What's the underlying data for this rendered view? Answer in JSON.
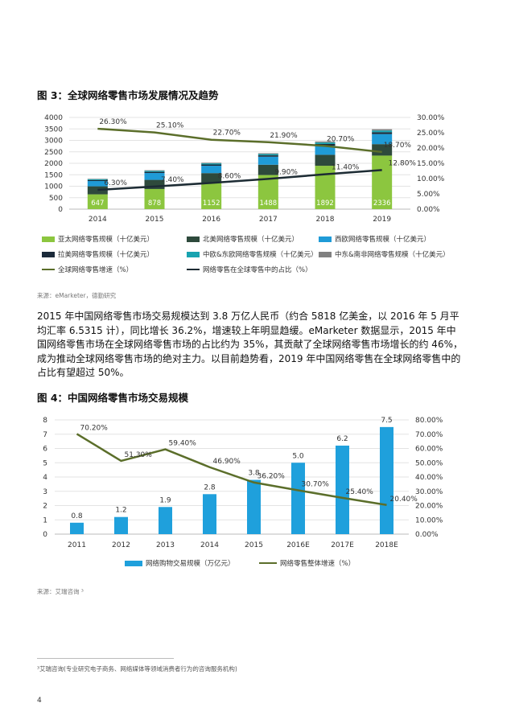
{
  "fig3": {
    "title": "图 3：全球网络零售市场发展情况及趋势",
    "source": "来源：eMarketer，德勤研究"
  },
  "paragraph": [
    "2015 年中国网络零售市场交易规模达到 3.8 万亿人民币（约合 5818 亿美金，以 2016 年 5 月平",
    "均汇率 6.5315 计），同比增长 36.2%，增速较上年明显趋缓。eMarketer 数据显示，2015 年中",
    "国网络零售市场在全球网络零售市场的占比约为 35%，其贡献了全球网络零售市场增长的约 46%，",
    "成为推动全球网络零售市场的绝对主力。以目前趋势看，2019 年中国网络零售在全球网络零售中的",
    "占比有望超过 50%。"
  ],
  "fig4": {
    "title": "图 4：中国网络零售市场交易规模",
    "source": "来源：艾瑞咨询 ³"
  },
  "footnote": "³艾瑞咨询(专业研究电子商务、网络媒体等领域消费者行为的咨询服务机构)",
  "page_number": "4",
  "colors": {
    "apac": "#8cc63f",
    "na": "#2e4a3c",
    "we": "#1f9bd7",
    "la": "#1b2a3a",
    "ceu": "#18a3b0",
    "mea": "#808080",
    "growth": "#5b6e2a",
    "share": "#1c2b33",
    "bar4": "#1fa0dc"
  },
  "chart_data": [
    {
      "type": "bar",
      "stacked": true,
      "categories": [
        "2014",
        "2015",
        "2016",
        "2017",
        "2018",
        "2019"
      ],
      "series": [
        {
          "name": "亚太网络零售规模（十亿美元）",
          "values": [
            647,
            878,
            1152,
            1488,
            1892,
            2336
          ],
          "labels": [
            "647",
            "878",
            "1152",
            "1488",
            "1892",
            "2336"
          ]
        },
        {
          "name": "北美网络零售规模（十亿美元）",
          "values": [
            350,
            400,
            420,
            450,
            480,
            500
          ]
        },
        {
          "name": "西欧网络零售规模（十亿美元）",
          "values": [
            230,
            300,
            320,
            350,
            400,
            440
          ]
        },
        {
          "name": "拉美网络零售规模（十亿美元）",
          "values": [
            40,
            50,
            55,
            60,
            70,
            80
          ]
        },
        {
          "name": "中欧&东欧网络零售规模（十亿美元）",
          "values": [
            40,
            45,
            50,
            55,
            65,
            75
          ]
        },
        {
          "name": "中东&南非网络零售规模（十亿美元）",
          "values": [
            20,
            25,
            30,
            35,
            45,
            55
          ]
        }
      ],
      "lines": [
        {
          "name": "全球网络零售增速（%）",
          "values": [
            26.3,
            25.1,
            22.7,
            21.9,
            20.7,
            18.7
          ],
          "labels": [
            "26.30%",
            "25.10%",
            "22.70%",
            "21.90%",
            "20.70%",
            "18.70%"
          ]
        },
        {
          "name": "网络零售在全球零售中的占比（%）",
          "values": [
            6.3,
            7.4,
            8.6,
            9.9,
            11.4,
            12.8
          ],
          "labels": [
            "6.30%",
            "7.40%",
            "8.60%",
            "9.90%",
            "11.40%",
            "12.80%"
          ]
        }
      ],
      "ylim": [
        0,
        4000
      ],
      "yticks": [
        "0",
        "500",
        "1000",
        "1500",
        "2000",
        "2500",
        "3000",
        "3500",
        "4000"
      ],
      "y2lim": [
        0,
        30
      ],
      "y2ticks": [
        "0.00%",
        "5.00%",
        "10.00%",
        "15.00%",
        "20.00%",
        "25.00%",
        "30.00%"
      ],
      "grid": true,
      "legend": "bottom"
    },
    {
      "type": "bar",
      "categories": [
        "2011",
        "2012",
        "2013",
        "2014",
        "2015",
        "2016E",
        "2017E",
        "2018E"
      ],
      "series": [
        {
          "name": "网络购物交易规模（万亿元）",
          "values": [
            0.8,
            1.2,
            1.9,
            2.8,
            3.8,
            5.0,
            6.2,
            7.5
          ],
          "labels": [
            "0.8",
            "1.2",
            "1.9",
            "2.8",
            "3.8",
            "5.0",
            "6.2",
            "7.5"
          ]
        }
      ],
      "lines": [
        {
          "name": "网络零售整体增速（%）",
          "values": [
            70.2,
            51.3,
            59.4,
            46.9,
            36.2,
            30.7,
            25.4,
            20.4
          ],
          "labels": [
            "70.20%",
            "51.30%",
            "59.40%",
            "46.90%",
            "36.20%",
            "30.70%",
            "25.40%",
            "20.40%"
          ]
        }
      ],
      "ylim": [
        0,
        8
      ],
      "yticks": [
        "0",
        "1",
        "2",
        "3",
        "4",
        "5",
        "6",
        "7",
        "8"
      ],
      "y2lim": [
        0,
        80
      ],
      "y2ticks": [
        "0.00%",
        "10.00%",
        "20.00%",
        "30.00%",
        "40.00%",
        "50.00%",
        "60.00%",
        "70.00%",
        "80.00%"
      ],
      "grid": true,
      "legend": "bottom"
    }
  ]
}
